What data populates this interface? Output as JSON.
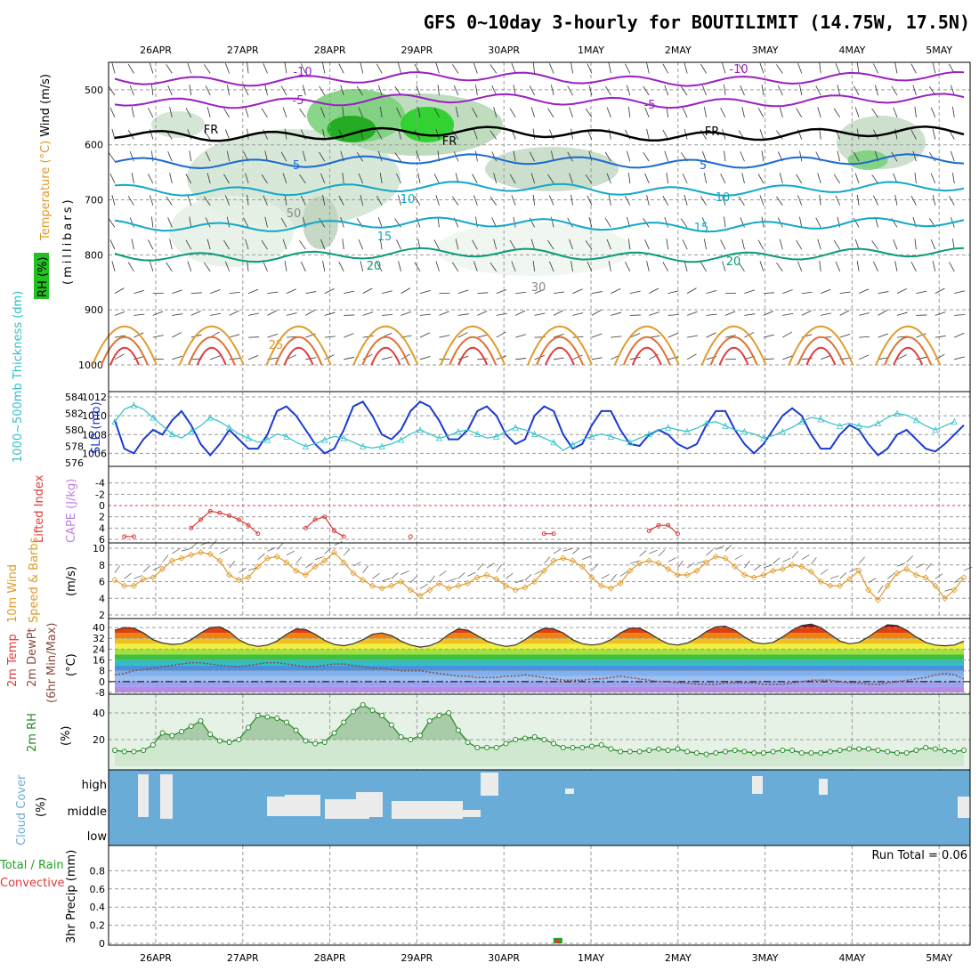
{
  "title": "GFS 0~10day 3-hourly for BOUTILIMIT (14.75W, 17.5N)",
  "colors": {
    "temp_warm": "#e09a2a",
    "temp_hot": "#e03a3a",
    "temp_cool": "#0a9a7a",
    "temp_cold": "#1a6ad0",
    "temp_neg": "#9a20c0",
    "rh_green": "#22c022",
    "slp": "#1a3ad0",
    "thickness": "#30c0c8",
    "lifted": "#e03a3a",
    "wind10": "#e09a2a",
    "rh2m": "#228a22",
    "cloud": "#6aacd8",
    "cloud_light": "#ececec"
  },
  "chart_data": [
    {
      "panel": "upper_air",
      "type": "heatmap",
      "ylabel_parts": [
        "Wind (m/s)",
        "Temperature (°C)",
        "RH (%)"
      ],
      "ylabel_unit": "(millibars)",
      "yticks": [
        "500",
        "600",
        "700",
        "800",
        "900",
        "1000"
      ],
      "ylim": [
        450,
        1000
      ],
      "x_dates": [
        "26APR",
        "27APR",
        "28APR",
        "29APR",
        "30APR",
        "1MAY",
        "2MAY",
        "3MAY",
        "4MAY",
        "5MAY"
      ],
      "contour_labels": [
        "-10",
        "-5",
        "FR",
        "5",
        "10",
        "15",
        "20",
        "25",
        "50",
        "30"
      ],
      "isotherms": [
        {
          "value": -10,
          "pressure": 480
        },
        {
          "value": -5,
          "pressure": 520
        },
        {
          "value": 0,
          "pressure": 580
        },
        {
          "value": 5,
          "pressure": 630
        },
        {
          "value": 10,
          "pressure": 680
        },
        {
          "value": 15,
          "pressure": 745
        },
        {
          "value": 20,
          "pressure": 800
        }
      ]
    },
    {
      "panel": "slp_thickness",
      "type": "line",
      "ylabel_thickness": "1000~500mb Thickness (dm)",
      "ylabel_slp": "SLP (mb)",
      "yticks_thickness": [
        "576",
        "578",
        "580",
        "582",
        "584"
      ],
      "yticks_slp": [
        "1006",
        "1008",
        "1010",
        "1012"
      ],
      "series": [
        {
          "name": "SLP",
          "axis": "slp",
          "values": [
            1009.5,
            1006.5,
            1006,
            1007.5,
            1008.5,
            1008,
            1009.5,
            1010.5,
            1009,
            1007,
            1005.8,
            1007,
            1008.5,
            1007.5,
            1006.5,
            1006.5,
            1008,
            1010.5,
            1011,
            1010,
            1008.5,
            1007,
            1006,
            1006.5,
            1008.5,
            1011,
            1011.5,
            1010,
            1008,
            1007.5,
            1008.5,
            1010.5,
            1011.5,
            1011,
            1009.5,
            1007.5,
            1007.5,
            1008.5,
            1010.5,
            1011,
            1010,
            1008,
            1007,
            1007.5,
            1010,
            1011,
            1010.5,
            1008,
            1006.5,
            1007,
            1009,
            1010.5,
            1010.5,
            1008.5,
            1007,
            1006.8,
            1008,
            1008.5,
            1008,
            1007,
            1006.5,
            1007,
            1009,
            1010.5,
            1010.5,
            1008.5,
            1007,
            1006,
            1007,
            1008.5,
            1010,
            1010.8,
            1010,
            1008,
            1006.5,
            1006.5,
            1008,
            1009,
            1008.5,
            1007,
            1005.8,
            1006.5,
            1008,
            1008.5,
            1007.5,
            1006.5,
            1006.2,
            1007,
            1008,
            1009
          ]
        },
        {
          "name": "Thickness",
          "axis": "thickness",
          "values": [
            581,
            582.5,
            583,
            582.5,
            581.5,
            580.5,
            579.5,
            579,
            579.8,
            580.5,
            581.5,
            581,
            580.3,
            579.5,
            579,
            578.5,
            578.8,
            579.5,
            579.2,
            578.5,
            578,
            578.3,
            578.8,
            579.2,
            579,
            578.5,
            578,
            577.8,
            578,
            578.3,
            578.8,
            579.5,
            580,
            579.5,
            579,
            579.3,
            579.8,
            580,
            579.5,
            579,
            579.2,
            579.8,
            580.3,
            580,
            579.5,
            579,
            578.5,
            577.5,
            578.2,
            578.8,
            579.2,
            579.5,
            579.2,
            578.8,
            578.5,
            579,
            579.5,
            580,
            580.3,
            580,
            579.8,
            580.2,
            580.8,
            581,
            580.5,
            580,
            579.8,
            579.5,
            579,
            579.3,
            579.8,
            580.3,
            581,
            581.5,
            581.3,
            580.8,
            580.5,
            580.8,
            580.5,
            580.3,
            580.8,
            581.5,
            582,
            581.8,
            581.2,
            580.5,
            580,
            580.5,
            581
          ]
        }
      ]
    },
    {
      "panel": "lifted_index",
      "type": "line",
      "ylabel": "Lifted Index",
      "ylabel2": "CAPE (J/kg)",
      "yticks": [
        "-4",
        "-2",
        "0",
        "2",
        "4",
        "6"
      ],
      "ylim": [
        -6,
        6
      ],
      "series": [
        {
          "name": "Lifted Index",
          "values": [
            6,
            5.5,
            5.5,
            6,
            6,
            6,
            6,
            6,
            4,
            2.5,
            1,
            1.3,
            1.8,
            2.5,
            3.5,
            5,
            6,
            6,
            6,
            6,
            4,
            2.5,
            2,
            4.5,
            5.5,
            6,
            6,
            6,
            6,
            6,
            6,
            5.5,
            6,
            6,
            6,
            6,
            6,
            6,
            6,
            6,
            6,
            6,
            6,
            6,
            6,
            5,
            5,
            6,
            6,
            6,
            6,
            6,
            6,
            6,
            6,
            6,
            4.5,
            3.5,
            3.5,
            5,
            6,
            6,
            6,
            6,
            6,
            6,
            6,
            6,
            6,
            6,
            6,
            6,
            6,
            6,
            6,
            6,
            6,
            6,
            6,
            6,
            6,
            6,
            6,
            6,
            6,
            6,
            6,
            6,
            6,
            6
          ]
        }
      ]
    },
    {
      "panel": "wind10m",
      "type": "line",
      "ylabel": "10m Wind",
      "ylabel2": "Speed & Barbs",
      "ylabel_unit": "(m/s)",
      "yticks": [
        "2",
        "4",
        "6",
        "8",
        "10"
      ],
      "ylim": [
        2,
        10
      ],
      "series": [
        {
          "name": "Wind Speed",
          "values": [
            6.2,
            5.5,
            5.5,
            6.3,
            6.5,
            7.5,
            8.5,
            8.8,
            9.2,
            9.5,
            9.3,
            8.5,
            6.8,
            6.2,
            6.5,
            7.8,
            8.8,
            9,
            8.3,
            7.3,
            6.8,
            7.8,
            8.5,
            9.5,
            8.3,
            7,
            6.2,
            5.5,
            5.2,
            5.5,
            6,
            5,
            4.3,
            5,
            5.8,
            5.2,
            5.5,
            5.8,
            6.5,
            6.8,
            6.3,
            5.5,
            5,
            5.3,
            6,
            7.3,
            8.5,
            8.8,
            8.5,
            7.8,
            6.5,
            5.5,
            5.2,
            5.8,
            7.3,
            8.2,
            8.5,
            8.2,
            7.5,
            6.8,
            6.8,
            7.3,
            8.3,
            9,
            8.8,
            7.8,
            6.8,
            6.5,
            6.8,
            7.3,
            7.5,
            8,
            7.8,
            7.2,
            6,
            5.5,
            5.5,
            6.3,
            7.3,
            5,
            3.8,
            5.5,
            7,
            7.5,
            6.8,
            6.5,
            5.5,
            4,
            5,
            6.5
          ]
        }
      ]
    },
    {
      "panel": "temp2m",
      "type": "area",
      "ylabel": "2m Temp",
      "ylabel2": "2m DewPt",
      "ylabel_unit": "(6hr Min/Max)",
      "ylabel_degC": "(°C)",
      "yticks": [
        "-8",
        "0",
        "8",
        "16",
        "24",
        "32",
        "40"
      ],
      "ylim": [
        -8,
        44
      ],
      "series": [
        {
          "name": "2m Temp",
          "values": [
            38,
            40,
            39.5,
            36,
            31,
            28.5,
            27.5,
            28,
            31,
            36,
            40,
            40.5,
            37,
            31,
            27.5,
            26,
            27,
            30,
            35,
            39,
            38.5,
            35,
            30.5,
            27.5,
            26.5,
            28,
            31,
            35,
            36,
            34,
            30,
            27,
            25.5,
            26.5,
            29.5,
            35,
            39,
            38,
            34,
            30,
            27.5,
            26,
            27,
            31,
            36,
            39.5,
            39,
            36,
            31,
            28,
            27,
            28,
            31,
            36,
            39.5,
            39.5,
            36,
            31.5,
            28,
            27,
            28.5,
            32,
            37,
            40.5,
            41,
            38,
            33,
            29,
            28,
            29,
            33,
            38,
            41.5,
            42.5,
            40,
            35,
            30,
            28,
            29,
            33,
            38,
            42,
            41.5,
            38,
            33,
            29,
            27,
            26.5,
            27,
            30
          ]
        },
        {
          "name": "2m DewPt",
          "values": [
            5,
            6,
            8,
            9,
            10,
            11,
            12,
            13,
            14,
            14,
            13,
            12,
            11.5,
            11,
            12,
            13,
            14,
            14,
            13,
            12,
            11,
            11,
            12,
            13,
            13,
            12,
            11,
            10,
            10,
            9,
            8,
            8,
            8,
            7,
            6,
            5,
            4,
            4,
            3,
            3,
            3,
            4,
            4,
            5,
            4,
            3,
            2,
            1,
            1,
            1,
            2,
            2,
            3,
            4,
            3,
            2,
            1,
            0,
            0,
            -1,
            -1,
            -2,
            -2,
            -2,
            -1,
            -1,
            -1,
            -1,
            -2,
            -2,
            -2,
            -1,
            0,
            1,
            1,
            1,
            0,
            -1,
            -1,
            -2,
            -2,
            -1,
            0,
            1,
            2,
            3,
            5,
            6,
            5,
            2
          ]
        }
      ]
    },
    {
      "panel": "rh2m",
      "type": "line",
      "ylabel": "2m RH",
      "ylabel_unit": "(%)",
      "yticks": [
        "20",
        "40"
      ],
      "ylim": [
        0,
        50
      ],
      "series": [
        {
          "name": "2m RH",
          "values": [
            12,
            11,
            11,
            12,
            16,
            25,
            23,
            26,
            30,
            34,
            24,
            19,
            18,
            20,
            29,
            38,
            37,
            36,
            33,
            27,
            19,
            17,
            18,
            25,
            33,
            41,
            46,
            42,
            38,
            31,
            22,
            20,
            23,
            34,
            38,
            40,
            27,
            18,
            14,
            14,
            14,
            17,
            20,
            21,
            22,
            20,
            17,
            14,
            14,
            14,
            15,
            16,
            13,
            11,
            11,
            11,
            12,
            13,
            12,
            13,
            11,
            10,
            9,
            10,
            11,
            12,
            11,
            10,
            10,
            11,
            12,
            12,
            10,
            10,
            10,
            11,
            12,
            13,
            13,
            13,
            12,
            11,
            10,
            10,
            12,
            14,
            13,
            12,
            11,
            12
          ]
        }
      ]
    },
    {
      "panel": "cloud",
      "type": "bar",
      "ylabel": "Cloud Cover",
      "ylabel_unit": "(%)",
      "levels": [
        "high",
        "middle",
        "low"
      ]
    },
    {
      "panel": "precip",
      "type": "bar",
      "ylabel": "3hr Precip (mm)",
      "ylabel2": "Total / Rain",
      "ylabel3": "Convective",
      "yticks": [
        "0",
        "0.2",
        "0.4",
        "0.6",
        "0.8"
      ],
      "ylim": [
        0,
        1
      ],
      "run_total": "Run Total = 0.06",
      "events": [
        {
          "date": "30APR 15Z",
          "value": 0.06
        }
      ]
    }
  ]
}
